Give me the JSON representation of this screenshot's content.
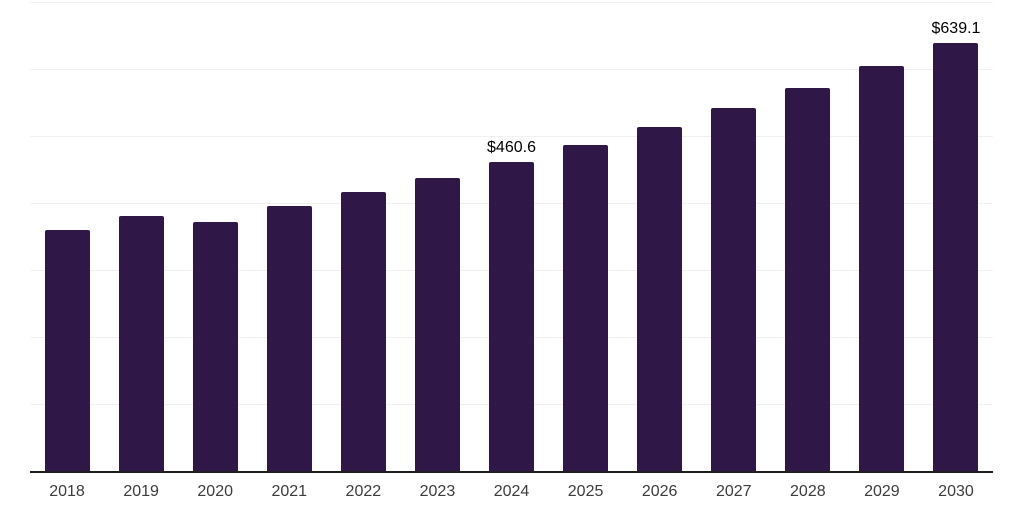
{
  "chart_data": {
    "type": "bar",
    "title": "",
    "xlabel": "",
    "ylabel": "",
    "categories": [
      "2018",
      "2019",
      "2020",
      "2021",
      "2022",
      "2023",
      "2024",
      "2025",
      "2026",
      "2027",
      "2028",
      "2029",
      "2030"
    ],
    "values": [
      359,
      380,
      372,
      395,
      416,
      437,
      460.6,
      486,
      513,
      542,
      572,
      605,
      639.1
    ],
    "bar_labels": [
      "",
      "",
      "",
      "",
      "",
      "",
      "$460.6",
      "",
      "",
      "",
      "",
      "",
      "$639.1"
    ],
    "ylim": [
      0,
      700
    ],
    "gridline_step": 100,
    "grid": true,
    "legend": false,
    "y_axis_labels_visible": false,
    "bar_color": "#2f1747"
  },
  "colors": {
    "bar": "#2f1747",
    "gridline": "#f0f0f0",
    "axis": "#1f1f1f",
    "tick_text": "#3c3c3c",
    "value_label_text": "#000000",
    "background": "#ffffff"
  }
}
